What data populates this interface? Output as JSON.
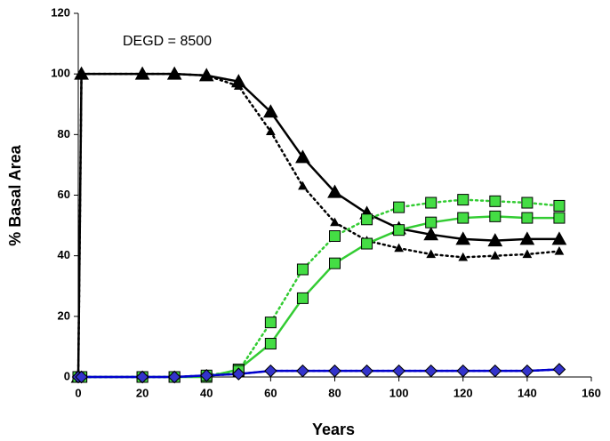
{
  "chart_data": {
    "type": "line",
    "annotation": "DEGD = 8500",
    "xlabel": "Years",
    "ylabel": "% Basal Area",
    "x": [
      0,
      1,
      20,
      30,
      40,
      50,
      60,
      70,
      80,
      90,
      100,
      110,
      120,
      130,
      140,
      150
    ],
    "xlim": [
      0,
      160
    ],
    "xticks": [
      0,
      20,
      40,
      60,
      80,
      100,
      120,
      140,
      160
    ],
    "ylim": [
      0,
      120
    ],
    "yticks": [
      0,
      20,
      40,
      60,
      80,
      100,
      120
    ],
    "series": [
      {
        "color": "#000000",
        "marker": "triangle",
        "marker_size": 15,
        "dash": "solid",
        "values": [
          0,
          100,
          100,
          100,
          99.5,
          97.5,
          87.5,
          72.5,
          61,
          54,
          49,
          47,
          45.5,
          45,
          45.5,
          45.5
        ]
      },
      {
        "color": "#000000",
        "marker": "triangle",
        "marker_size": 9,
        "dash": "dotted",
        "values": [
          0,
          100,
          100,
          100,
          99.5,
          96,
          81,
          63,
          51,
          45,
          42.5,
          40.5,
          39.5,
          40,
          40.5,
          41.5
        ]
      },
      {
        "color": "#33cc33",
        "marker": "square",
        "marker_size": 12,
        "dash": "solid",
        "values": [
          0,
          0,
          0,
          0,
          0,
          2.5,
          11,
          26,
          37.5,
          44,
          48.5,
          51,
          52.5,
          53,
          52.5,
          52.5
        ]
      },
      {
        "color": "#33cc33",
        "marker": "square",
        "marker_size": 12,
        "dash": "dotted",
        "values": [
          0,
          0,
          0,
          0,
          0.5,
          2,
          18,
          35.5,
          46.5,
          52,
          56,
          57.5,
          58.5,
          58,
          57.5,
          56.5
        ]
      },
      {
        "color": "#0000cc",
        "marker": "diamond",
        "marker_size": 13,
        "dash": "dotted",
        "values": [
          0,
          0,
          0,
          0,
          0.5,
          1,
          2,
          2,
          2,
          2,
          2,
          2,
          2,
          2,
          2,
          2.5
        ]
      },
      {
        "color": "#0000cc",
        "marker": "diamond",
        "marker_size": 13,
        "dash": "solid",
        "values": [
          0,
          0,
          0,
          0,
          0.5,
          1,
          2,
          2,
          2,
          2,
          2,
          2,
          2,
          2,
          2,
          2.5
        ]
      }
    ]
  }
}
